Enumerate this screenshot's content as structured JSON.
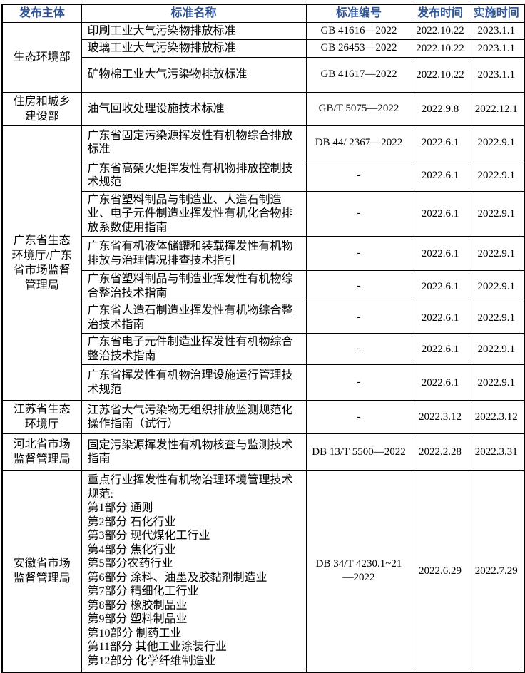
{
  "colors": {
    "header_text": "#2F5496",
    "border": "#000000",
    "body_text": "#000000",
    "background": "#ffffff"
  },
  "table": {
    "headers": [
      "发布主体",
      "标准名称",
      "标准编号",
      "发布时间",
      "实施时间"
    ],
    "groups": [
      {
        "publisher": "生态环境部",
        "rows": [
          {
            "name": "印刷工业大气污染物排放标准",
            "code": "GB 41616—2022",
            "pub_date": "2022.10.22",
            "impl_date": "2023.1.1"
          },
          {
            "name": "玻璃工业大气污染物排放标准",
            "code": "GB 26453—2022",
            "pub_date": "2022.10.22",
            "impl_date": "2023.1.1"
          },
          {
            "name": "矿物棉工业大气污染物排放标准",
            "code": "GB 41617—2022",
            "pub_date": "2022.10.22",
            "impl_date": "2023.1.1"
          }
        ]
      },
      {
        "publisher": "住房和城乡建设部",
        "rows": [
          {
            "name": "油气回收处理设施技术标准",
            "code": "GB/T 5075—2022",
            "pub_date": "2022.9.8",
            "impl_date": "2022.12.1"
          }
        ]
      },
      {
        "publisher": "广东省生态环境厅/广东省市场监督管理局",
        "rows": [
          {
            "name": "广东省固定污染源挥发性有机物综合排放标准",
            "code": "DB 44/ 2367—2022",
            "pub_date": "2022.6.1",
            "impl_date": "2022.9.1"
          },
          {
            "name": "广东省高架火炬挥发性有机物排放控制技术规范",
            "code": "-",
            "pub_date": "2022.6.1",
            "impl_date": "2022.9.1"
          },
          {
            "name": "广东省塑料制品与制造业、人造石制造业、电子元件制造业挥发性有机化合物排放系数使用指南",
            "code": "-",
            "pub_date": "2022.6.1",
            "impl_date": "2022.9.1"
          },
          {
            "name": "广东省有机液体储罐和装载挥发性有机物排放与治理情况排查技术指引",
            "code": "-",
            "pub_date": "2022.6.1",
            "impl_date": "2022.9.1"
          },
          {
            "name": "广东省塑料制品与制造业挥发性有机物综合整治技术指南",
            "code": "-",
            "pub_date": "2022.6.1",
            "impl_date": "2022.9.1"
          },
          {
            "name": "广东省人造石制造业挥发性有机物综合整治技术指南",
            "code": "-",
            "pub_date": "2022.6.1",
            "impl_date": "2022.9.1"
          },
          {
            "name": "广东省电子元件制造业挥发性有机物综合整治技术指南",
            "code": "-",
            "pub_date": "2022.6.1",
            "impl_date": "2022.9.1"
          },
          {
            "name": "广东省挥发性有机物治理设施运行管理技术规范",
            "code": "-",
            "pub_date": "2022.6.1",
            "impl_date": "2022.9.1"
          }
        ]
      },
      {
        "publisher": "江苏省生态环境厅",
        "rows": [
          {
            "name": "江苏省大气污染物无组织排放监测规范化操作指南（试行）",
            "code": "-",
            "pub_date": "2022.3.12",
            "impl_date": "2022.3.12"
          }
        ]
      },
      {
        "publisher": "河北省市场监督管理局",
        "rows": [
          {
            "name": "固定污染源挥发性有机物核查与监测技术指南",
            "code": "DB 13/T 5500—2022",
            "pub_date": "2022.2.28",
            "impl_date": "2022.3.31"
          }
        ]
      },
      {
        "publisher": "安徽省市场监督管理局",
        "rows": [
          {
            "name_lines": [
              "重点行业挥发性有机物治理环境管理技术规范:",
              "第1部分 通则",
              "第2部分 石化行业",
              "第3部分 现代煤化工行业",
              "第4部分 焦化行业",
              "第5部分农药行业",
              "第6部分 涂料、油墨及胶黏剂制造业",
              "第7部分 精细化工行业",
              "第8部分 橡胶制品业",
              "第9部分 塑料制品业",
              "第10部分 制药工业",
              "第11部分 其他工业涂装行业",
              "第12部分 化学纤维制造业"
            ],
            "code": "DB 34/T 4230.1~21—2022",
            "pub_date": "2022.6.29",
            "impl_date": "2022.7.29"
          }
        ]
      }
    ]
  }
}
